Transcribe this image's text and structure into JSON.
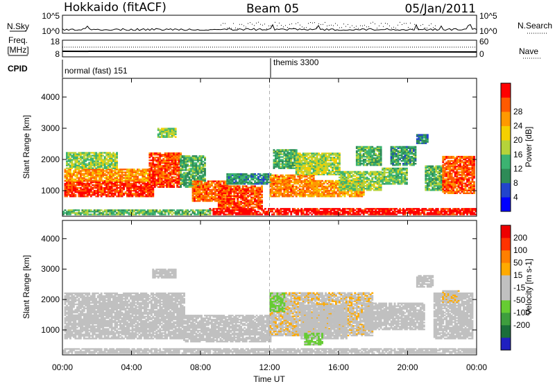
{
  "header": {
    "station": "Hokkaido (fitACF)",
    "beam": "Beam 05",
    "date": "05/Jan/2011"
  },
  "strip_labels": {
    "nsky": "N.Sky",
    "nsearch": "N.Search",
    "freq_top": "Freq.",
    "freq_unit": "[MHz]",
    "nave": "Nave",
    "cpid": "CPID",
    "n_tick_high": "10^5",
    "n_tick_low": "10^0",
    "freq_tick_high": "18",
    "freq_tick_low": "8",
    "nave_tick_high": "60",
    "nave_tick_low": "0"
  },
  "cpid_segments": [
    {
      "label": "normal (fast) 151",
      "start_hour": 0
    },
    {
      "label": "themis 3300",
      "start_hour": 12
    }
  ],
  "colors": {
    "power": [
      "#0000ff",
      "#2244cc",
      "#2e8b57",
      "#3cb371",
      "#b5d33a",
      "#f5d000",
      "#ff9900",
      "#ff5a00",
      "#ff0000"
    ],
    "velocity": [
      "#2020c0",
      "#1a6e3a",
      "#3e9e3e",
      "#66cc33",
      "#c0c0c0",
      "#c0c0c0",
      "#ffaa00",
      "#ff7f00",
      "#ff3300",
      "#ee0000"
    ]
  },
  "chart_data": [
    {
      "type": "heatmap",
      "name": "power",
      "title": "",
      "xlabel": "Time UT",
      "ylabel": "Slant Range [km]",
      "x_ticks": [
        "00:00",
        "04:00",
        "08:00",
        "12:00",
        "16:00",
        "20:00",
        "00:00"
      ],
      "xlim_hours": [
        0,
        24
      ],
      "y_ticks": [
        1000,
        2000,
        3000,
        4000
      ],
      "ylim_km": [
        180,
        4600
      ],
      "colorbar": {
        "label": "Power [dB]",
        "range": [
          0,
          30
        ],
        "ticks": [
          "4",
          "8",
          "12",
          "16",
          "20",
          "24",
          "28"
        ]
      },
      "regions": [
        {
          "t": [
            0.1,
            5.2
          ],
          "r": [
            800,
            1300
          ],
          "v": 27
        },
        {
          "t": [
            0.1,
            5.0
          ],
          "r": [
            1300,
            1700
          ],
          "v": 22
        },
        {
          "t": [
            0.2,
            3.2
          ],
          "r": [
            1700,
            2200
          ],
          "v": 14
        },
        {
          "t": [
            5.0,
            6.8
          ],
          "r": [
            1100,
            2200
          ],
          "v": 26
        },
        {
          "t": [
            5.5,
            6.5
          ],
          "r": [
            2700,
            3000
          ],
          "v": 14
        },
        {
          "t": [
            6.8,
            8.2
          ],
          "r": [
            1100,
            2100
          ],
          "v": 11
        },
        {
          "t": [
            7.5,
            9.5
          ],
          "r": [
            650,
            1300
          ],
          "v": 24
        },
        {
          "t": [
            9.0,
            11.5
          ],
          "r": [
            450,
            1150
          ],
          "v": 26
        },
        {
          "t": [
            9.5,
            12.0
          ],
          "r": [
            1200,
            1550
          ],
          "v": 9
        },
        {
          "t": [
            12.0,
            14.5
          ],
          "r": [
            800,
            1500
          ],
          "v": 23
        },
        {
          "t": [
            12.2,
            13.5
          ],
          "r": [
            1700,
            2300
          ],
          "v": 11
        },
        {
          "t": [
            13.5,
            16.0
          ],
          "r": [
            1500,
            2200
          ],
          "v": 15
        },
        {
          "t": [
            14.5,
            17.5
          ],
          "r": [
            800,
            1300
          ],
          "v": 22
        },
        {
          "t": [
            16.0,
            18.5
          ],
          "r": [
            1000,
            1600
          ],
          "v": 14
        },
        {
          "t": [
            17.0,
            18.5
          ],
          "r": [
            1800,
            2400
          ],
          "v": 12
        },
        {
          "t": [
            18.5,
            20.0
          ],
          "r": [
            1200,
            1700
          ],
          "v": 13
        },
        {
          "t": [
            19.0,
            20.5
          ],
          "r": [
            1800,
            2400
          ],
          "v": 10
        },
        {
          "t": [
            20.5,
            21.2
          ],
          "r": [
            2500,
            2800
          ],
          "v": 8
        },
        {
          "t": [
            21.0,
            22.0
          ],
          "r": [
            1000,
            1800
          ],
          "v": 12
        },
        {
          "t": [
            22.0,
            23.9
          ],
          "r": [
            900,
            2100
          ],
          "v": 25
        },
        {
          "t": [
            8.5,
            24.0
          ],
          "r": [
            220,
            420
          ],
          "v": 29
        },
        {
          "t": [
            0.0,
            8.5
          ],
          "r": [
            220,
            400
          ],
          "v": 12
        }
      ]
    },
    {
      "type": "heatmap",
      "name": "velocity",
      "title": "",
      "xlabel": "Time UT",
      "ylabel": "Slant Range [km]",
      "x_ticks": [
        "00:00",
        "04:00",
        "08:00",
        "12:00",
        "16:00",
        "20:00",
        "00:00"
      ],
      "xlim_hours": [
        0,
        24
      ],
      "y_ticks": [
        1000,
        2000,
        3000,
        4000
      ],
      "ylim_km": [
        180,
        4600
      ],
      "colorbar": {
        "label": "Velocity [m s-1]",
        "range": [
          -250,
          250
        ],
        "ticks": [
          "200",
          "100",
          "50",
          "15",
          "-15",
          "-50",
          "-100",
          "-200"
        ]
      },
      "regions": [
        {
          "t": [
            0.1,
            7.0
          ],
          "r": [
            700,
            2200
          ],
          "v": 0
        },
        {
          "t": [
            7.0,
            12.0
          ],
          "r": [
            600,
            1500
          ],
          "v": 0
        },
        {
          "t": [
            5.2,
            6.5
          ],
          "r": [
            2700,
            3000
          ],
          "v": 0
        },
        {
          "t": [
            12.0,
            18.0
          ],
          "r": [
            800,
            2200
          ],
          "v": 40
        },
        {
          "t": [
            13.8,
            16.5
          ],
          "r": [
            700,
            1800
          ],
          "v": 0
        },
        {
          "t": [
            12.0,
            12.8
          ],
          "r": [
            1600,
            2200
          ],
          "v": -60
        },
        {
          "t": [
            14.0,
            15.0
          ],
          "r": [
            500,
            900
          ],
          "v": -60
        },
        {
          "t": [
            17.5,
            21.0
          ],
          "r": [
            1000,
            1900
          ],
          "v": 30
        },
        {
          "t": [
            20.5,
            21.5
          ],
          "r": [
            2400,
            2800
          ],
          "v": 0
        },
        {
          "t": [
            21.5,
            23.8
          ],
          "r": [
            700,
            2200
          ],
          "v": 0
        },
        {
          "t": [
            22.0,
            23.0
          ],
          "r": [
            1900,
            2300
          ],
          "v": 40
        },
        {
          "t": [
            0.0,
            24.0
          ],
          "r": [
            220,
            400
          ],
          "v": 0
        }
      ]
    }
  ]
}
